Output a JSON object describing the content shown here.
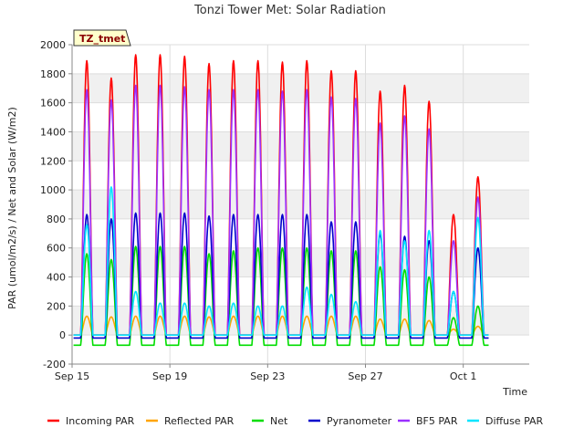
{
  "chart_data": {
    "type": "line",
    "title": "Tonzi Tower Met: Solar Radiation",
    "xlabel": "Time",
    "ylabel": "PAR (umol/m2/s) / Net and Solar (W/m2)",
    "badge": "TZ_tmet",
    "ylim": [
      -200,
      2000
    ],
    "yticks": [
      -200,
      0,
      200,
      400,
      600,
      800,
      1000,
      1200,
      1400,
      1600,
      1800,
      2000
    ],
    "xlim": [
      0,
      18.7
    ],
    "xticks": [
      {
        "day": 0,
        "label": "Sep 15"
      },
      {
        "day": 4,
        "label": "Sep 19"
      },
      {
        "day": 8,
        "label": "Sep 23"
      },
      {
        "day": 12,
        "label": "Sep 27"
      },
      {
        "day": 16,
        "label": "Oct 1"
      }
    ],
    "grid": true,
    "legend_position": "bottom",
    "daylight_hours": [
      7,
      19
    ],
    "series": [
      {
        "name": "Incoming PAR",
        "color": "#ff0000",
        "night": 0,
        "daily_peaks": [
          1890,
          1770,
          1930,
          1930,
          1920,
          1870,
          1890,
          1890,
          1880,
          1890,
          1820,
          1820,
          1680,
          1720,
          1610,
          830,
          1090
        ]
      },
      {
        "name": "Reflected PAR",
        "color": "#ffa500",
        "night": 0,
        "daily_peaks": [
          130,
          125,
          130,
          130,
          130,
          125,
          130,
          130,
          130,
          130,
          130,
          130,
          110,
          110,
          100,
          40,
          60
        ]
      },
      {
        "name": "Net",
        "color": "#00dd00",
        "night": -70,
        "daily_peaks": [
          560,
          520,
          610,
          610,
          610,
          560,
          580,
          600,
          600,
          600,
          580,
          580,
          470,
          450,
          400,
          120,
          200
        ]
      },
      {
        "name": "Pyranometer",
        "color": "#0000cc",
        "night": -20,
        "daily_peaks": [
          830,
          800,
          840,
          840,
          840,
          820,
          830,
          830,
          830,
          830,
          780,
          780,
          700,
          680,
          650,
          300,
          600
        ]
      },
      {
        "name": "BF5 PAR",
        "color": "#9b30ff",
        "night": 0,
        "daily_peaks": [
          1690,
          1620,
          1720,
          1720,
          1710,
          1690,
          1690,
          1690,
          1680,
          1690,
          1640,
          1630,
          1460,
          1510,
          1420,
          650,
          950
        ]
      },
      {
        "name": "Diffuse PAR",
        "color": "#00e5ff",
        "night": 0,
        "daily_peaks": [
          760,
          1020,
          300,
          220,
          220,
          200,
          220,
          200,
          200,
          330,
          280,
          230,
          720,
          650,
          720,
          300,
          810
        ]
      }
    ]
  }
}
